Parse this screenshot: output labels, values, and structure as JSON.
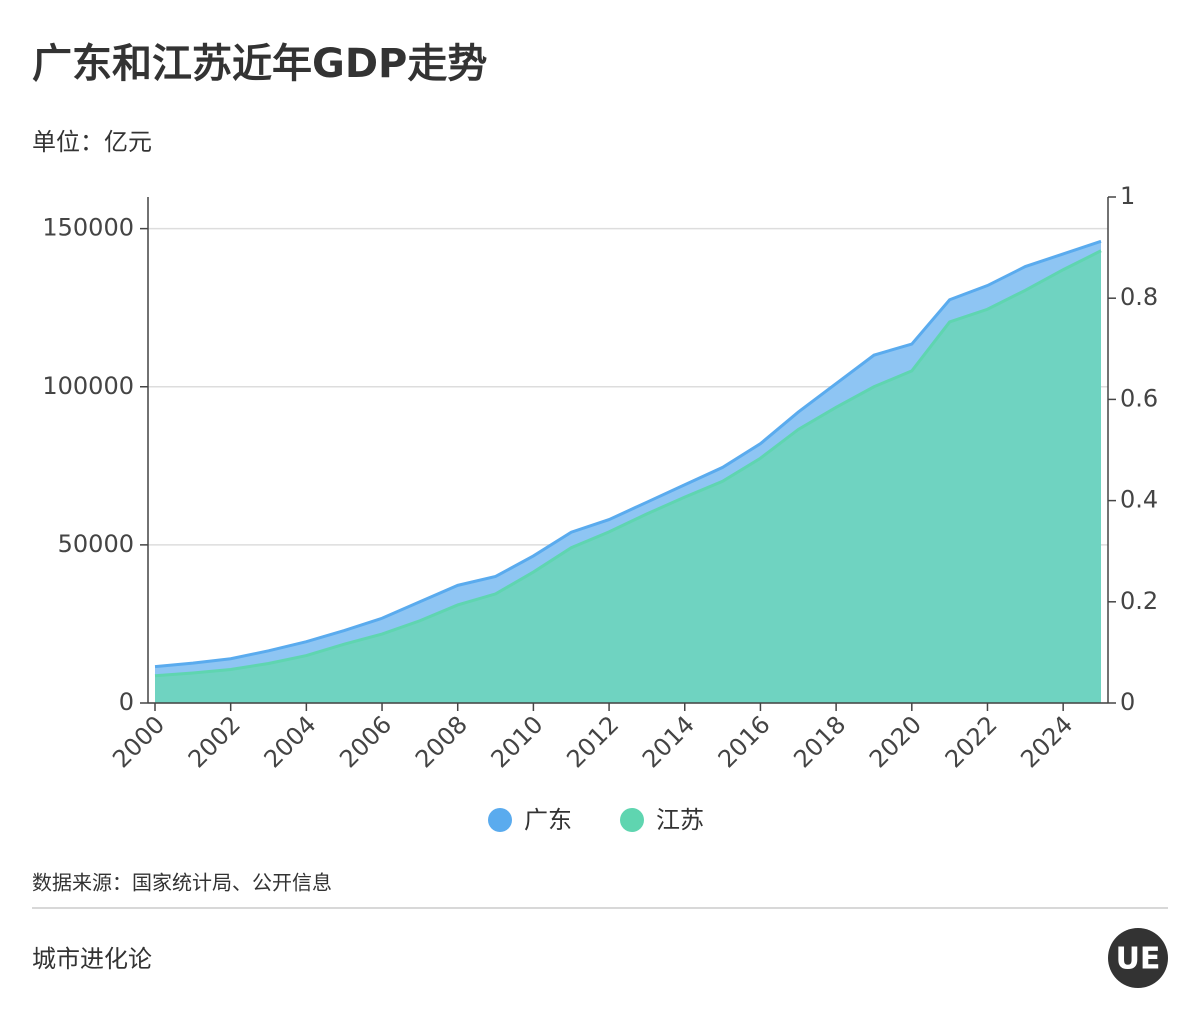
{
  "chart_data": {
    "type": "area",
    "title": "广东和江苏近年GDP走势",
    "subtitle": "单位：亿元",
    "x": [
      2000,
      2001,
      2002,
      2003,
      2004,
      2005,
      2006,
      2007,
      2008,
      2009,
      2010,
      2011,
      2012,
      2013,
      2014,
      2015,
      2016,
      2017,
      2018,
      2019,
      2020,
      2021,
      2022,
      2023,
      2024,
      2025
    ],
    "xlim": [
      2000,
      2025
    ],
    "xticks": [
      2000,
      2002,
      2004,
      2006,
      2008,
      2010,
      2012,
      2014,
      2016,
      2018,
      2020,
      2022,
      2024
    ],
    "ylim": [
      0,
      160000
    ],
    "yticks": [
      0,
      50000,
      100000,
      150000
    ],
    "y2lim": [
      0,
      1
    ],
    "y2ticks": [
      0,
      0.2,
      0.4,
      0.6,
      0.8,
      1
    ],
    "grid": true,
    "series": [
      {
        "name": "广东",
        "color": "#5aabee",
        "fill": "#8ec5f3",
        "values": [
          11500,
          12600,
          14000,
          16500,
          19400,
          22900,
          26800,
          32000,
          37200,
          40000,
          46500,
          54000,
          58000,
          63500,
          69000,
          74500,
          82000,
          92000,
          101000,
          110000,
          113500,
          127500,
          132000,
          138000,
          142000,
          146000
        ]
      },
      {
        "name": "江苏",
        "color": "#5fd5b0",
        "fill": "#6fd3c1",
        "values": [
          8600,
          9500,
          10600,
          12500,
          15000,
          18600,
          21800,
          26000,
          31000,
          34500,
          41400,
          49100,
          54100,
          59800,
          65100,
          70100,
          77400,
          86500,
          93500,
          100000,
          105000,
          120500,
          124500,
          130500,
          137000,
          143000
        ]
      }
    ],
    "legend": "bottom",
    "source": "数据来源：国家统计局、公开信息",
    "brand": "城市进化论",
    "logo": "UE"
  }
}
